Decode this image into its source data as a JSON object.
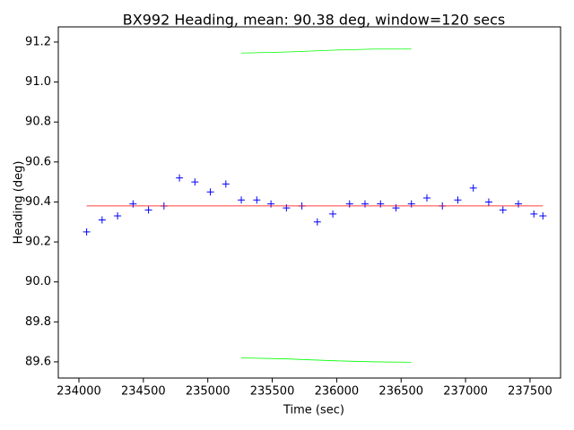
{
  "chart_data": {
    "type": "line",
    "title": "BX992 Heading, mean: 90.38 deg, window=120 secs",
    "x_label": "Time (sec)",
    "y_label": "Heading (deg)",
    "xlim": [
      233840,
      237737
    ],
    "ylim": [
      89.519,
      91.276
    ],
    "xticks": [
      234000,
      234500,
      235000,
      235500,
      236000,
      236500,
      237000,
      237500
    ],
    "yticks": [
      89.6,
      89.8,
      {
        "value": 90,
        "label": "90.0"
      },
      90.2,
      90.4,
      90.6,
      90.8,
      {
        "value": 91,
        "label": "91.0"
      },
      91.2
    ],
    "series": [
      {
        "color": "#0000ff",
        "style": "marker",
        "x": [
          234060,
          234180,
          234300,
          234420,
          234540,
          234660,
          234780,
          234900,
          235020,
          235140,
          235260,
          235380,
          235490,
          235610,
          235730,
          235850,
          235970,
          236100,
          236220,
          236340,
          236460,
          236580,
          236700,
          236820,
          236940,
          237060,
          237180,
          237290,
          237410,
          237530,
          237600
        ],
        "values": [
          90.25,
          90.31,
          90.33,
          90.39,
          90.36,
          90.38,
          90.52,
          90.5,
          90.45,
          90.49,
          90.41,
          90.41,
          90.39,
          90.37,
          90.38,
          90.3,
          90.34,
          90.39,
          90.39,
          90.39,
          90.37,
          90.39,
          90.42,
          90.38,
          90.41,
          90.47,
          90.4,
          90.36,
          90.39,
          90.34,
          90.33
        ]
      },
      {
        "color": "#ff0000",
        "style": "line",
        "x": [
          234060,
          237600
        ],
        "values": [
          90.38,
          90.38
        ]
      },
      {
        "color": "#00ff00",
        "style": "line",
        "x": [
          235260,
          235600,
          236000,
          236300,
          236580
        ],
        "values": [
          91.145,
          91.15,
          91.16,
          91.165,
          91.165
        ]
      },
      {
        "color": "#00ff00",
        "style": "line",
        "x": [
          235260,
          235600,
          236000,
          236300,
          236580
        ],
        "values": [
          89.62,
          89.615,
          89.605,
          89.6,
          89.598
        ]
      }
    ]
  }
}
